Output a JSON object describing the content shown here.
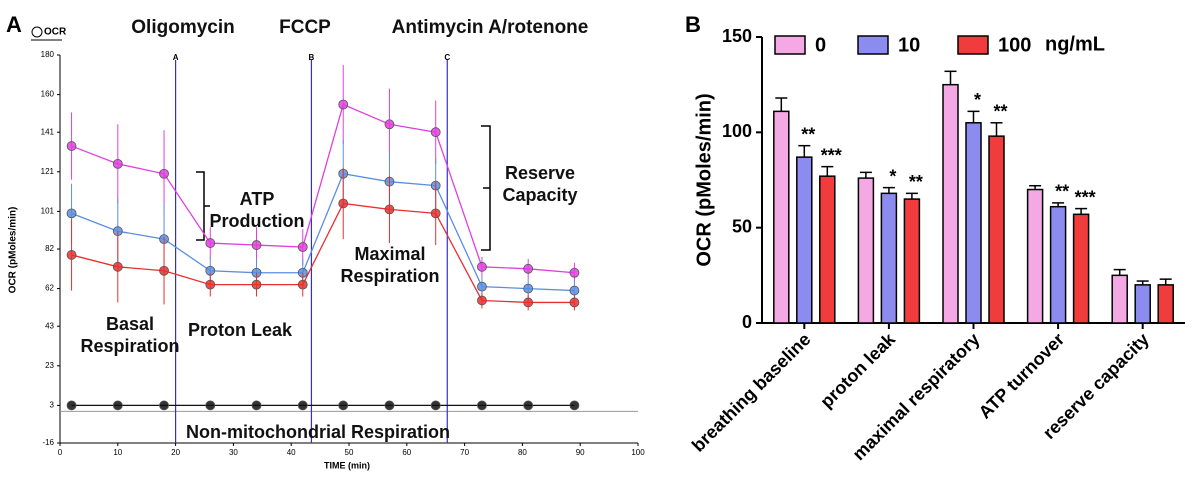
{
  "chart_data": [
    {
      "type": "line",
      "panel_label": "A",
      "corner_label": "OCR",
      "xlabel": "TIME (min)",
      "ylabel": "OCR (pMoles/min)",
      "xlim": [
        0,
        100
      ],
      "xticks": [
        0,
        10,
        20,
        30,
        40,
        50,
        60,
        70,
        80,
        90,
        100
      ],
      "ylim": [
        -16,
        180
      ],
      "yticks": [
        -16,
        3,
        23,
        43,
        62,
        82,
        101,
        121,
        141,
        160,
        180
      ],
      "x": [
        2,
        10,
        18,
        26,
        34,
        42,
        49,
        57,
        65,
        73,
        81,
        89
      ],
      "series": [
        {
          "color": "#e040e0",
          "values": [
            134,
            125,
            120,
            85,
            84,
            83,
            155,
            145,
            141,
            73,
            72,
            70
          ],
          "errors": [
            17,
            20,
            22,
            8,
            9,
            9,
            20,
            18,
            16,
            5,
            5,
            5
          ]
        },
        {
          "color": "#5b8ee0",
          "values": [
            100,
            91,
            87,
            71,
            70,
            70,
            120,
            116,
            114,
            63,
            62,
            61
          ],
          "errors": [
            15,
            17,
            18,
            7,
            7,
            7,
            17,
            15,
            14,
            5,
            5,
            5
          ]
        },
        {
          "color": "#e83030",
          "values": [
            79,
            73,
            71,
            64,
            64,
            64,
            105,
            102,
            100,
            56,
            55,
            55
          ],
          "errors": [
            18,
            18,
            17,
            6,
            6,
            6,
            18,
            17,
            16,
            4,
            4,
            4
          ]
        },
        {
          "color": "#111111",
          "values": [
            3,
            3,
            3,
            3,
            3,
            3,
            3,
            3,
            3,
            3,
            3,
            3
          ],
          "errors": [
            0,
            0,
            0,
            0,
            0,
            0,
            0,
            0,
            0,
            0,
            0,
            0
          ]
        }
      ],
      "injections": [
        {
          "x": 20,
          "label": "A"
        },
        {
          "x": 43.5,
          "label": "B"
        },
        {
          "x": 67,
          "label": "C"
        }
      ],
      "annotations": [
        "Oligomycin",
        "FCCP",
        "Antimycin A/rotenone",
        "ATP Production",
        "Reserve Capacity",
        "Maximal Respiration",
        "Basal Respiration",
        "Proton Leak",
        "Non-mitochondrial Respiration"
      ]
    },
    {
      "type": "bar",
      "panel_label": "B",
      "ylabel": "OCR (pMoles/min)",
      "ylim": [
        0,
        150
      ],
      "yticks": [
        0,
        50,
        100,
        150
      ],
      "legend_unit": "ng/mL",
      "categories": [
        "breathing baseline",
        "proton leak",
        "maximal respiratory",
        "ATP turnover",
        "reserve capacity"
      ],
      "series": [
        {
          "name": "0",
          "color": "#f4a8e4",
          "values": [
            111,
            76,
            125,
            70,
            25
          ],
          "errors": [
            7,
            3,
            7,
            2,
            3
          ],
          "stars": [
            null,
            null,
            null,
            null,
            null
          ]
        },
        {
          "name": "10",
          "color": "#8c8cf0",
          "values": [
            87,
            68,
            105,
            61,
            20
          ],
          "errors": [
            6,
            3,
            6,
            2,
            2
          ],
          "stars": [
            "**",
            "*",
            "*",
            "**",
            null
          ]
        },
        {
          "name": "100",
          "color": "#f03c3c",
          "values": [
            77,
            65,
            98,
            57,
            20
          ],
          "errors": [
            5,
            3,
            7,
            3,
            3
          ],
          "stars": [
            "***",
            "**",
            "**",
            "***",
            null
          ]
        }
      ]
    }
  ]
}
